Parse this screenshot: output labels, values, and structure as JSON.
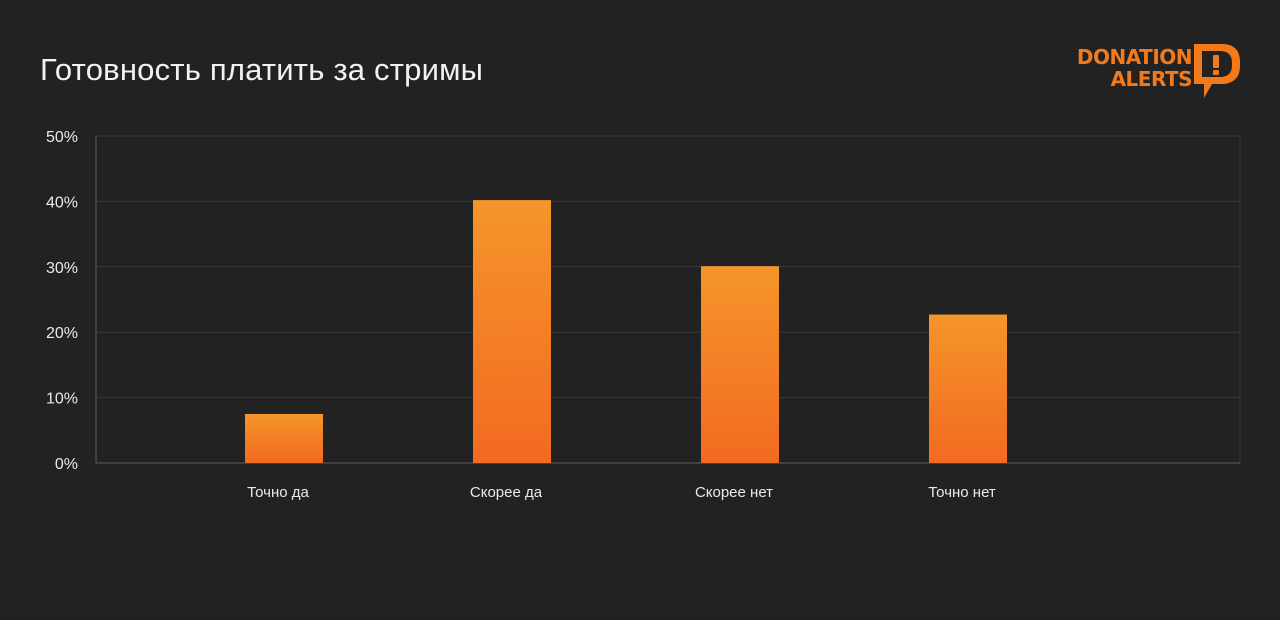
{
  "chart_data": {
    "type": "bar",
    "title": "Готовность платить за стримы",
    "categories": [
      "Точно да",
      "Скорее да",
      "Скорее нет",
      "Точно нет"
    ],
    "values": [
      7.5,
      40.2,
      30.1,
      22.7
    ],
    "y_ticks": [
      "0%",
      "10%",
      "20%",
      "30%",
      "40%",
      "50%"
    ],
    "ylim": [
      0,
      50
    ],
    "grid": true,
    "colors": {
      "bar_top": "#f5952a",
      "bar_bottom": "#f26a21",
      "grid": "#3a3a3a",
      "frame": "#4a4a4a"
    }
  },
  "logo": {
    "line1": "DONATION",
    "line2": "ALERTS",
    "icon": "exclamation-speech-bubble-icon",
    "color": "#f27a1a"
  }
}
